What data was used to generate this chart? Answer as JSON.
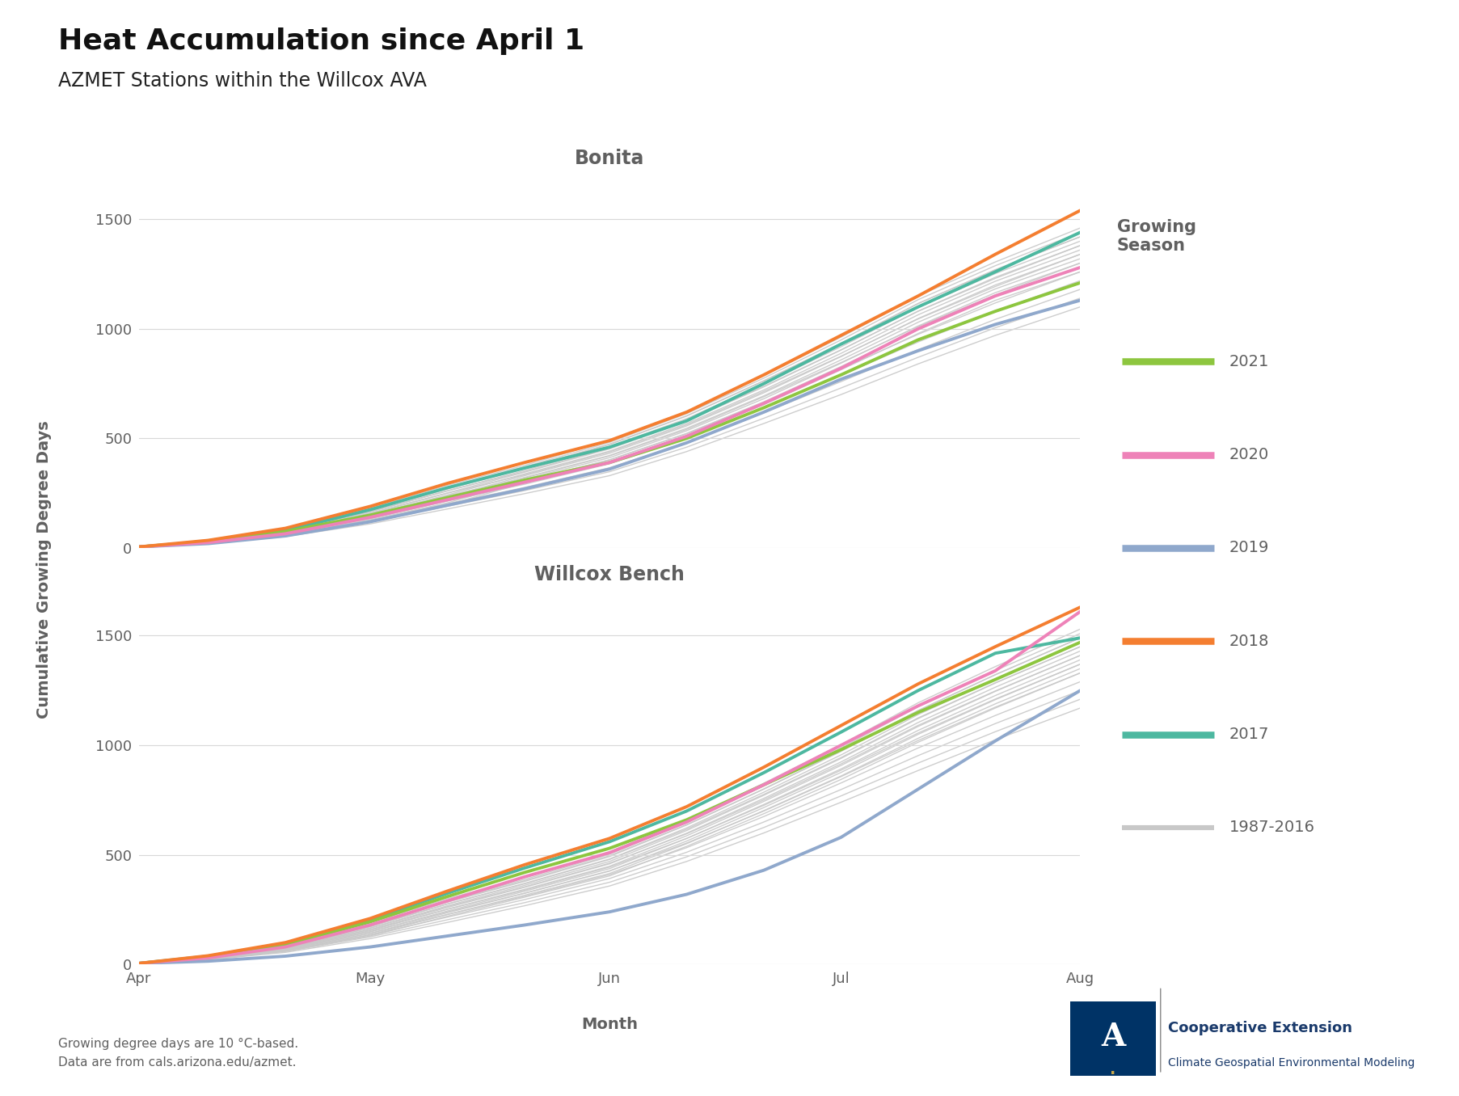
{
  "title": "Heat Accumulation since April 1",
  "subtitle": "AZMET Stations within the Willcox AVA",
  "ylabel": "Cumulative Growing Degree Days",
  "xlabel": "Month",
  "footer_line1": "Growing degree days are 10 °C-based.",
  "footer_line2": "Data are from cals.arizona.edu/azmet.",
  "subplot_titles": [
    "Bonita",
    "Willcox Bench"
  ],
  "legend_title": "Growing\nSeason",
  "colors": {
    "2021": "#8dc63f",
    "2020": "#ee82b8",
    "2019": "#8fa8cc",
    "2018": "#f47e30",
    "2017": "#4db8a0",
    "historical": "#c8c8c8"
  },
  "lw_named": 2.8,
  "lw_hist": 1.0,
  "background_color": "#ffffff",
  "grid_color": "#d8d8d8",
  "subplot_title_color": "#606060",
  "legend_text_color": "#606060",
  "axis_label_color": "#606060",
  "tick_color": "#606060",
  "month_ticks": [
    91,
    121,
    152,
    182,
    213
  ],
  "month_labels": [
    "Apr",
    "May",
    "Jun",
    "Jul",
    "Aug"
  ],
  "ylim": [
    0,
    1700
  ],
  "yticks": [
    0,
    500,
    1000,
    1500
  ],
  "bonita": {
    "x": [
      91,
      100,
      110,
      121,
      131,
      141,
      152,
      162,
      172,
      182,
      192,
      202,
      213
    ],
    "2021": [
      5,
      30,
      75,
      150,
      230,
      310,
      390,
      500,
      640,
      790,
      950,
      1080,
      1210
    ],
    "2020": [
      5,
      25,
      65,
      140,
      220,
      300,
      390,
      510,
      660,
      820,
      1000,
      1150,
      1280
    ],
    "2019": [
      5,
      20,
      55,
      120,
      195,
      270,
      360,
      480,
      620,
      770,
      900,
      1020,
      1130
    ],
    "2018": [
      5,
      35,
      90,
      190,
      295,
      390,
      490,
      620,
      790,
      970,
      1150,
      1340,
      1540
    ],
    "2017": [
      5,
      30,
      80,
      175,
      275,
      365,
      460,
      580,
      750,
      930,
      1100,
      1260,
      1440
    ],
    "hist_years": [
      [
        5,
        20,
        52,
        110,
        178,
        248,
        330,
        440,
        568,
        700,
        840,
        970,
        1100
      ],
      [
        5,
        22,
        56,
        118,
        190,
        262,
        348,
        460,
        592,
        730,
        870,
        1005,
        1140
      ],
      [
        5,
        24,
        60,
        126,
        202,
        276,
        366,
        480,
        617,
        759,
        905,
        1043,
        1180
      ],
      [
        5,
        26,
        64,
        134,
        214,
        291,
        384,
        500,
        641,
        788,
        940,
        1080,
        1220
      ],
      [
        5,
        28,
        68,
        142,
        226,
        305,
        402,
        521,
        665,
        817,
        975,
        1118,
        1260
      ],
      [
        5,
        30,
        72,
        150,
        238,
        320,
        420,
        541,
        690,
        846,
        1010,
        1155,
        1300
      ],
      [
        5,
        32,
        76,
        158,
        250,
        334,
        438,
        562,
        714,
        875,
        1045,
        1193,
        1340
      ],
      [
        5,
        34,
        80,
        166,
        262,
        348,
        456,
        582,
        738,
        904,
        1080,
        1230,
        1380
      ],
      [
        5,
        36,
        84,
        174,
        274,
        363,
        474,
        603,
        763,
        933,
        1115,
        1268,
        1420
      ],
      [
        5,
        38,
        88,
        182,
        286,
        377,
        492,
        623,
        787,
        962,
        1150,
        1305,
        1460
      ],
      [
        5,
        36,
        85,
        177,
        278,
        370,
        482,
        613,
        775,
        949,
        1133,
        1288,
        1440
      ],
      [
        5,
        34,
        82,
        171,
        269,
        362,
        472,
        602,
        762,
        934,
        1116,
        1270,
        1420
      ],
      [
        5,
        32,
        79,
        165,
        260,
        354,
        462,
        590,
        748,
        918,
        1098,
        1252,
        1400
      ],
      [
        5,
        30,
        76,
        159,
        251,
        346,
        452,
        579,
        735,
        903,
        1081,
        1235,
        1380
      ],
      [
        5,
        28,
        73,
        153,
        242,
        338,
        442,
        568,
        721,
        888,
        1064,
        1217,
        1360
      ],
      [
        5,
        26,
        70,
        147,
        233,
        330,
        432,
        557,
        708,
        873,
        1047,
        1200,
        1340
      ],
      [
        5,
        24,
        67,
        141,
        224,
        322,
        422,
        546,
        694,
        858,
        1030,
        1182,
        1320
      ],
      [
        5,
        22,
        64,
        135,
        215,
        314,
        412,
        535,
        681,
        843,
        1013,
        1165,
        1300
      ],
      [
        5,
        20,
        61,
        129,
        206,
        305,
        402,
        523,
        667,
        828,
        996,
        1147,
        1280
      ],
      [
        5,
        18,
        58,
        123,
        197,
        297,
        392,
        512,
        654,
        813,
        979,
        1130,
        1260
      ]
    ]
  },
  "willcox": {
    "x": [
      91,
      100,
      110,
      121,
      131,
      141,
      152,
      162,
      172,
      182,
      192,
      202,
      213
    ],
    "2021": [
      5,
      35,
      90,
      195,
      310,
      420,
      530,
      660,
      820,
      980,
      1150,
      1300,
      1470
    ],
    "2020": [
      5,
      30,
      80,
      180,
      290,
      400,
      510,
      650,
      820,
      1000,
      1180,
      1340,
      1610
    ],
    "2019": [
      5,
      15,
      38,
      80,
      130,
      180,
      240,
      320,
      430,
      580,
      800,
      1020,
      1250
    ],
    "2018": [
      5,
      40,
      100,
      210,
      335,
      455,
      575,
      720,
      900,
      1090,
      1280,
      1450,
      1630
    ],
    "2017": [
      5,
      38,
      95,
      205,
      325,
      440,
      560,
      700,
      875,
      1060,
      1250,
      1420,
      1490
    ],
    "hist_years": [
      [
        5,
        22,
        55,
        118,
        192,
        268,
        358,
        470,
        600,
        740,
        885,
        1025,
        1170
      ],
      [
        5,
        24,
        59,
        126,
        204,
        282,
        375,
        491,
        625,
        769,
        919,
        1062,
        1210
      ],
      [
        5,
        26,
        63,
        134,
        216,
        296,
        392,
        512,
        650,
        798,
        953,
        1099,
        1250
      ],
      [
        5,
        28,
        67,
        142,
        228,
        311,
        410,
        533,
        675,
        828,
        988,
        1136,
        1290
      ],
      [
        5,
        30,
        71,
        150,
        240,
        325,
        427,
        554,
        700,
        857,
        1022,
        1174,
        1330
      ],
      [
        5,
        32,
        75,
        158,
        252,
        339,
        444,
        575,
        726,
        886,
        1056,
        1211,
        1370
      ],
      [
        5,
        34,
        79,
        166,
        264,
        354,
        462,
        596,
        751,
        915,
        1091,
        1248,
        1410
      ],
      [
        5,
        36,
        83,
        174,
        276,
        368,
        479,
        617,
        776,
        944,
        1125,
        1285,
        1450
      ],
      [
        5,
        38,
        87,
        182,
        288,
        382,
        496,
        638,
        801,
        974,
        1159,
        1322,
        1490
      ],
      [
        5,
        40,
        91,
        190,
        300,
        397,
        514,
        659,
        827,
        1003,
        1194,
        1359,
        1530
      ],
      [
        5,
        38,
        88,
        184,
        292,
        388,
        503,
        648,
        814,
        988,
        1176,
        1341,
        1510
      ],
      [
        5,
        36,
        85,
        178,
        284,
        379,
        492,
        636,
        800,
        972,
        1158,
        1322,
        1490
      ],
      [
        5,
        34,
        82,
        172,
        276,
        370,
        481,
        623,
        786,
        956,
        1140,
        1303,
        1470
      ],
      [
        5,
        32,
        79,
        166,
        268,
        361,
        470,
        611,
        772,
        940,
        1122,
        1284,
        1450
      ],
      [
        5,
        30,
        76,
        160,
        260,
        352,
        459,
        599,
        758,
        924,
        1104,
        1265,
        1430
      ],
      [
        5,
        28,
        73,
        154,
        252,
        343,
        448,
        587,
        744,
        908,
        1086,
        1246,
        1410
      ],
      [
        5,
        26,
        70,
        148,
        244,
        334,
        437,
        575,
        730,
        892,
        1068,
        1227,
        1390
      ],
      [
        5,
        24,
        67,
        142,
        236,
        325,
        426,
        563,
        716,
        876,
        1050,
        1208,
        1370
      ],
      [
        5,
        22,
        64,
        136,
        228,
        316,
        415,
        551,
        702,
        860,
        1032,
        1189,
        1350
      ],
      [
        5,
        20,
        61,
        130,
        220,
        307,
        404,
        539,
        688,
        844,
        1014,
        1170,
        1330
      ]
    ]
  }
}
